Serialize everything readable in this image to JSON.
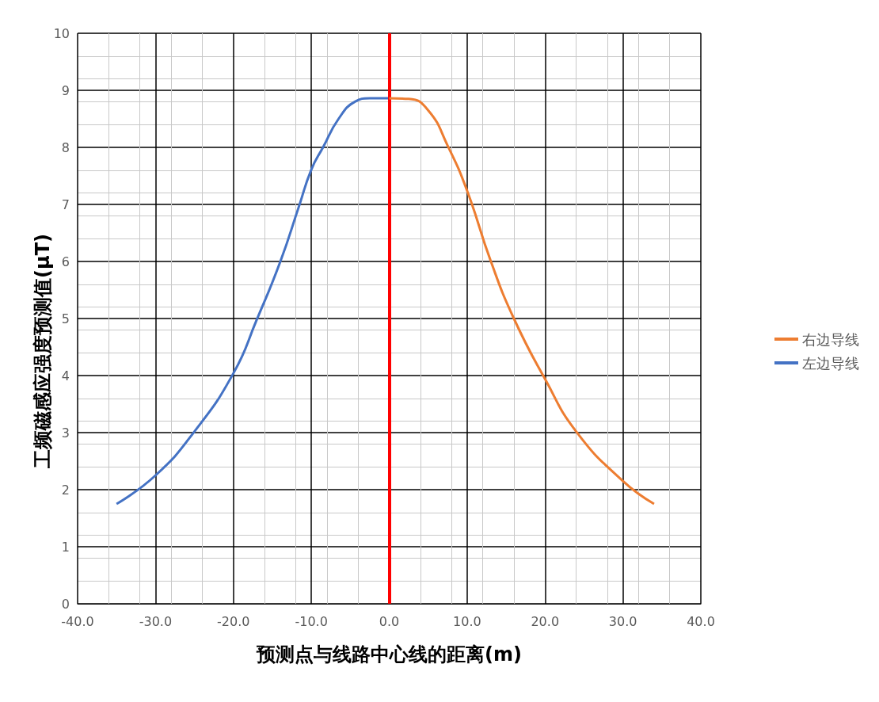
{
  "chart_data": {
    "type": "line",
    "xlabel": "预测点与线路中心线的距离(m)",
    "ylabel": "工频磁感应强度预测值(μT)",
    "xlim": [
      -40,
      40
    ],
    "xticks": [
      {
        "value": -40,
        "label": "-40.0"
      },
      {
        "value": -30,
        "label": "-30.0"
      },
      {
        "value": -20,
        "label": "-20.0"
      },
      {
        "value": -10,
        "label": "-10.0"
      },
      {
        "value": 0,
        "label": "0.0"
      },
      {
        "value": 10,
        "label": "10.0"
      },
      {
        "value": 20,
        "label": "20.0"
      },
      {
        "value": 30,
        "label": "30.0"
      },
      {
        "value": 40,
        "label": "40.0"
      }
    ],
    "ylim": [
      0,
      10
    ],
    "yticks": [
      0,
      1,
      2,
      3,
      4,
      5,
      6,
      7,
      8,
      9,
      10
    ],
    "grid": true,
    "legend": "right",
    "marker": "none",
    "line_style": "solid",
    "ref_lines": [
      {
        "axis": "x",
        "value": 0,
        "color": "#ff0000"
      }
    ],
    "series": [
      {
        "name": "右边导线",
        "color": "#ed7d31",
        "x": [
          0,
          2.5,
          5,
          7.5,
          10,
          13,
          16,
          20,
          24,
          30,
          34
        ],
        "values": [
          8.86,
          8.85,
          8.65,
          8.03,
          7.24,
          6.02,
          5.0,
          3.94,
          3.02,
          2.15,
          1.75
        ]
      },
      {
        "name": "左边导线",
        "color": "#4472c4",
        "x": [
          -35,
          -30,
          -25,
          -20,
          -17,
          -14,
          -11.6,
          -10,
          -8.5,
          -6.5,
          -4.4,
          -2.5,
          0
        ],
        "values": [
          1.75,
          2.25,
          3.02,
          4.04,
          4.98,
          5.99,
          6.96,
          7.61,
          8.0,
          8.5,
          8.8,
          8.86,
          8.86
        ]
      }
    ]
  }
}
